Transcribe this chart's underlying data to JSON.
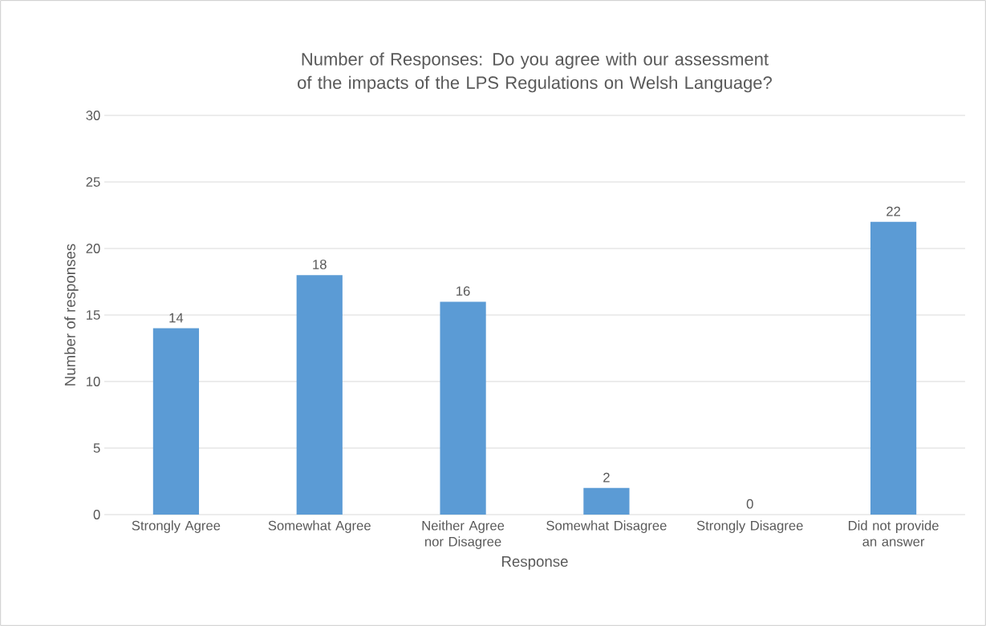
{
  "chart_data": {
    "type": "bar",
    "title": "Number of Responses: Do you agree with our assessment of the impacts of the LPS Regulations on Welsh Language?",
    "xlabel": "Response",
    "ylabel": "Number of responses",
    "categories": [
      "Strongly Agree",
      "Somewhat Agree",
      "Neither Agree nor Disagree",
      "Somewhat Disagree",
      "Strongly Disagree",
      "Did not provide an answer"
    ],
    "values": [
      14,
      18,
      16,
      2,
      0,
      22
    ],
    "color": "#5b9bd5",
    "ylim": [
      0,
      30
    ],
    "yticks": [
      0,
      5,
      10,
      15,
      20,
      25,
      30
    ],
    "grid": "y",
    "data_labels": true
  }
}
